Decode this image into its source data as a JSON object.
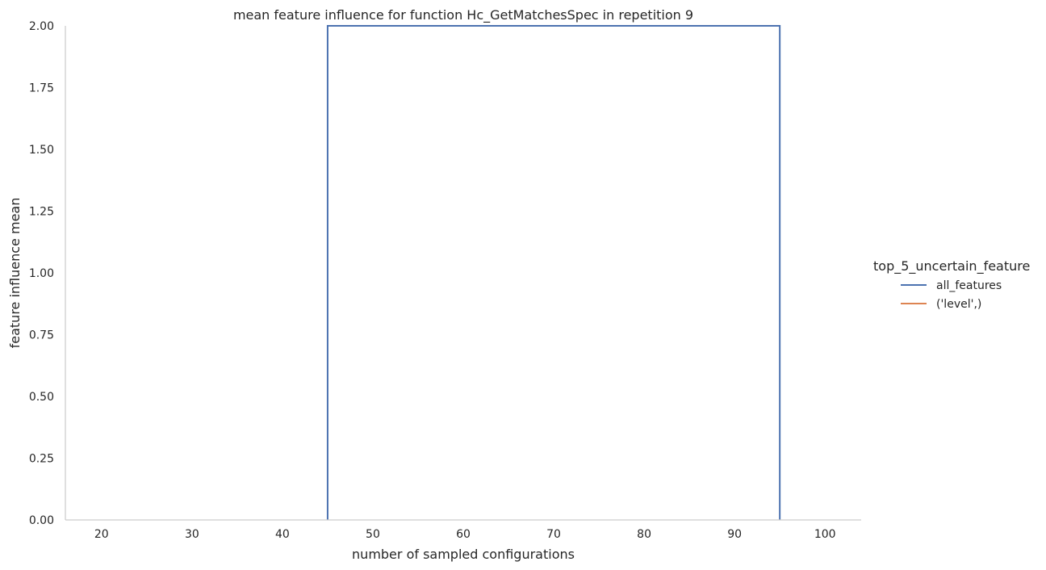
{
  "chart_data": {
    "type": "line",
    "title": "mean feature influence for function Hc_GetMatchesSpec in repetition 9",
    "xlabel": "number of sampled configurations",
    "ylabel": "feature influence mean",
    "xlim": [
      16,
      104
    ],
    "ylim": [
      0,
      2
    ],
    "xticks": [
      20,
      30,
      40,
      50,
      60,
      70,
      80,
      90,
      100
    ],
    "yticks": [
      0,
      0.25,
      0.5,
      0.75,
      1.0,
      1.25,
      1.5,
      1.75,
      2.0
    ],
    "ytick_labels": [
      "0.00",
      "0.25",
      "0.50",
      "0.75",
      "1.00",
      "1.25",
      "1.50",
      "1.75",
      "2.00"
    ],
    "grid": false,
    "legend": {
      "title": "top_5_uncertain_feature",
      "placement": "right"
    },
    "series": [
      {
        "name": "all_features",
        "color": "#4c72b0",
        "x": [
          45,
          45,
          95,
          95
        ],
        "y": [
          0,
          2,
          2,
          0
        ]
      },
      {
        "name": "('level',)",
        "color": "#dd8452",
        "x": [],
        "y": []
      }
    ]
  }
}
